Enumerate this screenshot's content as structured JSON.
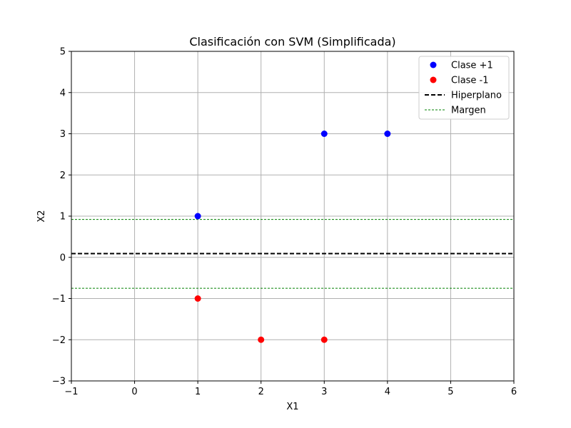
{
  "chart_data": {
    "type": "scatter",
    "title": "Clasificación con SVM (Simplificada)",
    "xlabel": "X1",
    "ylabel": "X2",
    "xlim": [
      -1,
      6
    ],
    "ylim": [
      -3,
      5
    ],
    "xticks": [
      -1,
      0,
      1,
      2,
      3,
      4,
      5,
      6
    ],
    "yticks": [
      -3,
      -2,
      -1,
      0,
      1,
      2,
      3,
      4,
      5
    ],
    "grid": true,
    "legend_position": "top-right",
    "series": [
      {
        "name": "Clase +1",
        "kind": "points",
        "color": "#0000ff",
        "points": [
          [
            1,
            1
          ],
          [
            3,
            3
          ],
          [
            4,
            3
          ]
        ]
      },
      {
        "name": "Clase -1",
        "kind": "points",
        "color": "#ff0000",
        "points": [
          [
            1,
            -1
          ],
          [
            2,
            -2
          ],
          [
            3,
            -2
          ]
        ]
      },
      {
        "name": "Hiperplano",
        "kind": "line",
        "style": "dashed",
        "color": "#000000",
        "y": 0.09
      },
      {
        "name": "Margen",
        "kind": "line",
        "style": "dashed-thin",
        "color": "#008000",
        "y_values": [
          0.92,
          -0.75
        ]
      }
    ]
  }
}
